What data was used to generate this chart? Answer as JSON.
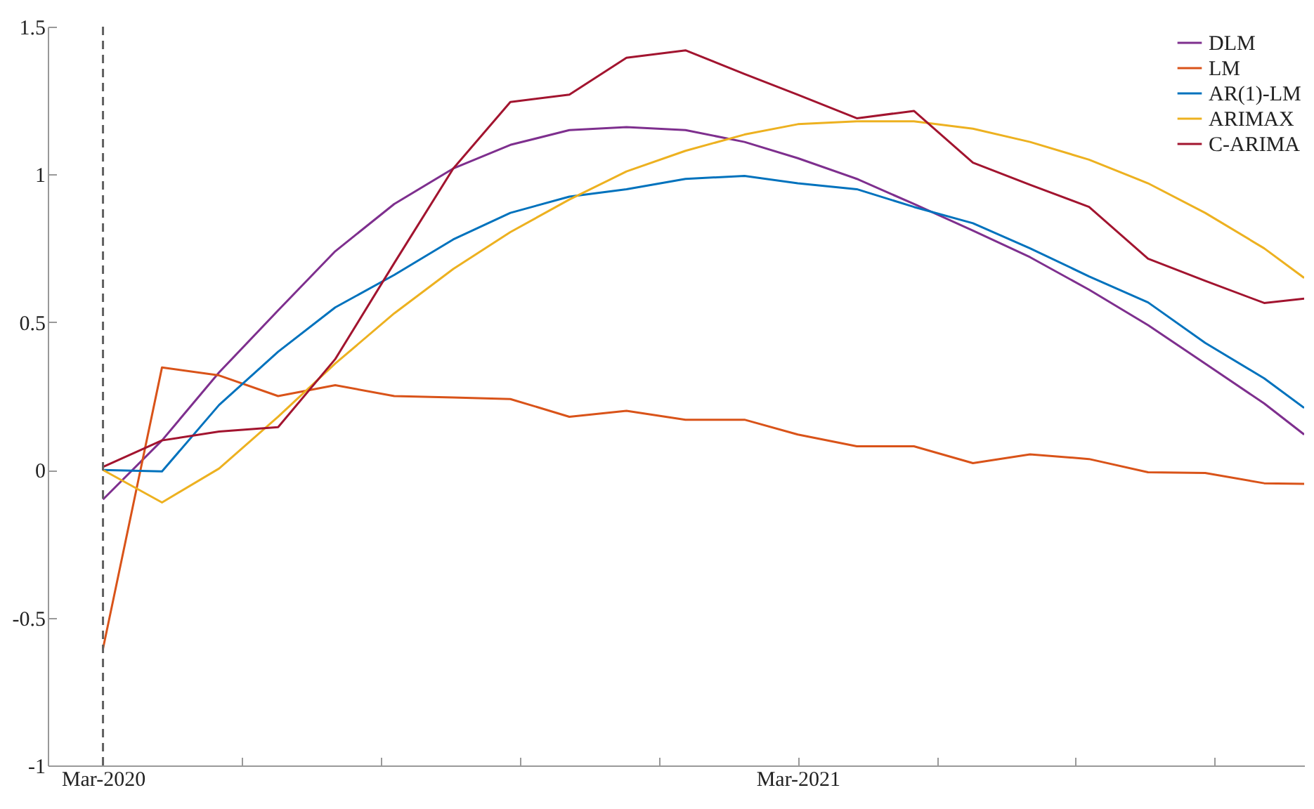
{
  "chart_data": {
    "type": "line",
    "x": [
      "2020-03",
      "2020-04",
      "2020-05",
      "2020-06",
      "2020-07",
      "2020-08",
      "2020-09",
      "2020-10",
      "2020-11",
      "2020-12",
      "2021-01",
      "2021-02",
      "2021-03",
      "2021-04",
      "2021-05",
      "2021-06",
      "2021-07",
      "2021-08",
      "2021-09",
      "2021-10",
      "2021-11",
      "2021-11-22"
    ],
    "series": [
      {
        "name": "DLM",
        "color": "#7e2f8e",
        "values": [
          -0.1,
          0.1,
          0.33,
          0.54,
          0.74,
          0.9,
          1.02,
          1.1,
          1.15,
          1.16,
          1.15,
          1.11,
          1.055,
          0.985,
          0.9,
          0.81,
          0.72,
          0.61,
          0.49,
          0.36,
          0.225,
          0.12
        ]
      },
      {
        "name": "LM",
        "color": "#d95319",
        "values": [
          -0.605,
          0.347,
          0.32,
          0.25,
          0.287,
          0.25,
          0.245,
          0.24,
          0.18,
          0.2,
          0.17,
          0.17,
          0.12,
          0.08,
          0.08,
          0.023,
          0.053,
          0.037,
          -0.008,
          -0.01,
          -0.045,
          -0.047
        ]
      },
      {
        "name": "AR(1)-LM",
        "color": "#0072bd",
        "values": [
          0,
          -0.005,
          0.22,
          0.4,
          0.55,
          0.66,
          0.78,
          0.87,
          0.925,
          0.95,
          0.985,
          0.995,
          0.97,
          0.95,
          0.89,
          0.835,
          0.75,
          0.655,
          0.567,
          0.43,
          0.31,
          0.21
        ]
      },
      {
        "name": "ARIMAX",
        "color": "#edb120",
        "values": [
          0,
          -0.11,
          0.005,
          0.18,
          0.36,
          0.53,
          0.68,
          0.805,
          0.915,
          1.01,
          1.08,
          1.135,
          1.17,
          1.18,
          1.18,
          1.155,
          1.11,
          1.05,
          0.97,
          0.87,
          0.75,
          0.65
        ]
      },
      {
        "name": "C-ARIMA",
        "color": "#a2142f",
        "values": [
          0.01,
          0.1,
          0.13,
          0.145,
          0.375,
          0.7,
          1.02,
          1.245,
          1.27,
          1.395,
          1.42,
          1.34,
          1.27,
          1.19,
          1.215,
          1.04,
          0.965,
          0.89,
          0.715,
          0.64,
          0.565,
          0.58
        ]
      }
    ],
    "xlim": [
      "2020-02-01",
      "2021-11-22"
    ],
    "xticks": [
      {
        "value": "2020-03",
        "label": "Mar-2020"
      },
      {
        "value": "2020-05-13",
        "label": null
      },
      {
        "value": "2020-07-25",
        "label": null
      },
      {
        "value": "2020-10-06",
        "label": null
      },
      {
        "value": "2020-12-18",
        "label": null
      },
      {
        "value": "2021-03",
        "label": "Mar-2021"
      },
      {
        "value": "2021-05-13",
        "label": null
      },
      {
        "value": "2021-07-25",
        "label": null
      },
      {
        "value": "2021-10-06",
        "label": null
      }
    ],
    "ylim": [
      -1,
      1.5
    ],
    "yticks": [
      -1,
      -0.5,
      0,
      0.5,
      1,
      1.5
    ],
    "ref_lines": [
      {
        "axis": "x",
        "value": "2020-03",
        "color": "#606060",
        "line_style": "dashed"
      }
    ],
    "legend": "top right",
    "grid": false,
    "line_style": "solid"
  }
}
